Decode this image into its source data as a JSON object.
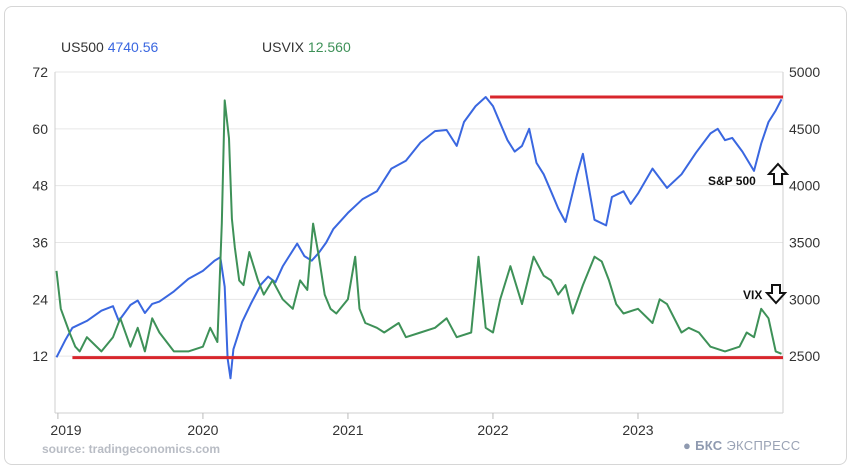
{
  "legend": {
    "s1_name": "US500",
    "s1_value": "4740.56",
    "s2_name": "USVIX",
    "s2_value": "12.560"
  },
  "source": "source: tradingeconomics.com",
  "brand": {
    "bold": "БКС",
    "rest": "ЭКСПРЕСС"
  },
  "colors": {
    "spx": "#3a67e0",
    "vix": "#3e9158",
    "line": "#d8262c",
    "grid": "#e6e6e6"
  },
  "chart_data": {
    "type": "line",
    "x_ticks": [
      "2019",
      "2020",
      "2021",
      "2022",
      "2023"
    ],
    "left_axis": {
      "ticks": [
        "12",
        "24",
        "36",
        "48",
        "60",
        "72"
      ],
      "range": [
        0,
        72
      ]
    },
    "right_axis": {
      "ticks": [
        "2500",
        "3000",
        "3500",
        "4000",
        "4500",
        "5000"
      ],
      "range": [
        2000,
        5000
      ]
    },
    "x_range": [
      2018.98,
      2024.0
    ],
    "series": [
      {
        "name": "US500",
        "axis": "right",
        "color": "#3a67e0",
        "x": [
          2018.99,
          2019.05,
          2019.1,
          2019.15,
          2019.2,
          2019.3,
          2019.38,
          2019.42,
          2019.5,
          2019.55,
          2019.6,
          2019.65,
          2019.7,
          2019.8,
          2019.9,
          2020.0,
          2020.08,
          2020.12,
          2020.15,
          2020.17,
          2020.19,
          2020.21,
          2020.23,
          2020.27,
          2020.33,
          2020.4,
          2020.45,
          2020.5,
          2020.55,
          2020.6,
          2020.65,
          2020.7,
          2020.75,
          2020.8,
          2020.85,
          2020.9,
          2021.0,
          2021.1,
          2021.2,
          2021.3,
          2021.4,
          2021.5,
          2021.6,
          2021.68,
          2021.75,
          2021.8,
          2021.88,
          2021.95,
          2022.0,
          2022.05,
          2022.1,
          2022.15,
          2022.2,
          2022.25,
          2022.3,
          2022.35,
          2022.4,
          2022.45,
          2022.5,
          2022.58,
          2022.62,
          2022.7,
          2022.78,
          2022.82,
          2022.9,
          2022.95,
          2023.0,
          2023.1,
          2023.2,
          2023.3,
          2023.4,
          2023.5,
          2023.55,
          2023.6,
          2023.65,
          2023.72,
          2023.8,
          2023.85,
          2023.9,
          2023.95,
          2023.99
        ],
        "values": [
          2490,
          2640,
          2750,
          2780,
          2810,
          2900,
          2940,
          2810,
          2950,
          2990,
          2880,
          2960,
          2980,
          3070,
          3180,
          3250,
          3340,
          3370,
          3110,
          2480,
          2305,
          2560,
          2640,
          2800,
          2960,
          3130,
          3200,
          3150,
          3290,
          3390,
          3490,
          3380,
          3340,
          3410,
          3500,
          3620,
          3760,
          3880,
          3950,
          4150,
          4220,
          4380,
          4480,
          4490,
          4350,
          4560,
          4700,
          4780,
          4700,
          4550,
          4400,
          4300,
          4350,
          4500,
          4200,
          4100,
          3950,
          3800,
          3680,
          4100,
          4280,
          3700,
          3650,
          3900,
          3950,
          3840,
          3930,
          4150,
          3980,
          4100,
          4290,
          4460,
          4500,
          4400,
          4420,
          4300,
          4130,
          4370,
          4560,
          4660,
          4760
        ]
      },
      {
        "name": "USVIX",
        "axis": "left",
        "color": "#3e9158",
        "x": [
          2018.99,
          2019.02,
          2019.08,
          2019.12,
          2019.15,
          2019.2,
          2019.3,
          2019.38,
          2019.43,
          2019.5,
          2019.55,
          2019.6,
          2019.65,
          2019.7,
          2019.8,
          2019.9,
          2020.0,
          2020.05,
          2020.1,
          2020.13,
          2020.15,
          2020.18,
          2020.2,
          2020.22,
          2020.25,
          2020.28,
          2020.32,
          2020.38,
          2020.42,
          2020.48,
          2020.55,
          2020.62,
          2020.67,
          2020.72,
          2020.76,
          2020.8,
          2020.84,
          2020.88,
          2020.92,
          2021.0,
          2021.05,
          2021.08,
          2021.12,
          2021.2,
          2021.25,
          2021.35,
          2021.4,
          2021.5,
          2021.6,
          2021.68,
          2021.75,
          2021.85,
          2021.9,
          2021.95,
          2022.0,
          2022.05,
          2022.12,
          2022.2,
          2022.28,
          2022.35,
          2022.4,
          2022.45,
          2022.5,
          2022.55,
          2022.62,
          2022.7,
          2022.75,
          2022.8,
          2022.85,
          2022.9,
          2023.0,
          2023.1,
          2023.15,
          2023.2,
          2023.3,
          2023.35,
          2023.42,
          2023.5,
          2023.6,
          2023.7,
          2023.75,
          2023.8,
          2023.85,
          2023.9,
          2023.95,
          2023.99
        ],
        "values": [
          30,
          22,
          17,
          14,
          13,
          16,
          13,
          16,
          20,
          14,
          18,
          13,
          20,
          17,
          13,
          13,
          14,
          18,
          15,
          40,
          66,
          58,
          41,
          35,
          28,
          27,
          34,
          28,
          25,
          28,
          24,
          22,
          28,
          26,
          40,
          33,
          25,
          22,
          21,
          24,
          33,
          22,
          19,
          18,
          17,
          19,
          16,
          17,
          18,
          20,
          16,
          17,
          33,
          18,
          17,
          24,
          31,
          23,
          33,
          29,
          28,
          25,
          27,
          21,
          27,
          33,
          32,
          28,
          23,
          21,
          22,
          19,
          24,
          23,
          17,
          18,
          17,
          14,
          13,
          14,
          17,
          16,
          22,
          20,
          13,
          12.5
        ]
      }
    ],
    "annotations": [
      {
        "text": "S&P 500",
        "arrow": "up",
        "color": "#111111"
      },
      {
        "text": "VIX",
        "arrow": "down",
        "color": "#111111"
      },
      {
        "type": "hline",
        "axis": "right",
        "value": 4780,
        "x_from": 2021.98,
        "x_to": 2024.0,
        "color": "#d8262c"
      },
      {
        "type": "hline",
        "axis": "left",
        "value": 11.7,
        "x_from": 2019.1,
        "x_to": 2024.0,
        "color": "#d8262c"
      }
    ]
  }
}
